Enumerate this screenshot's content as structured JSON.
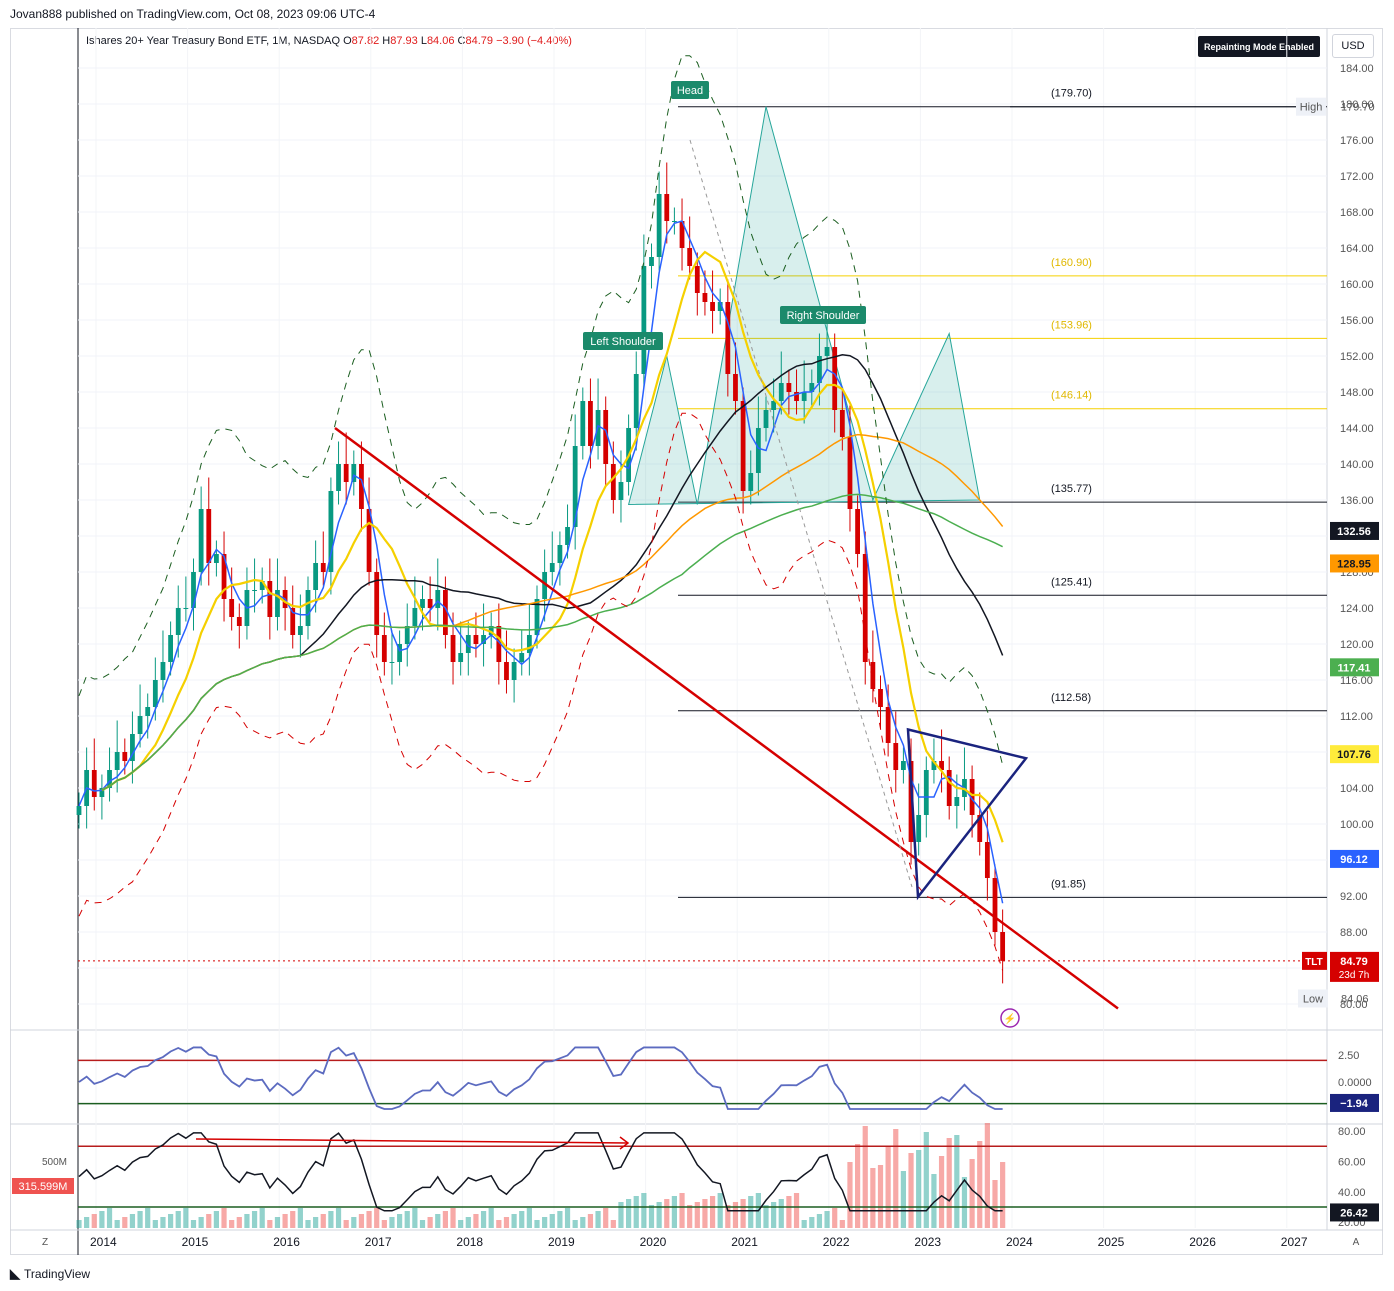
{
  "header": {
    "published": "Jovan888 published on TradingView.com, Oct 08, 2023 09:06 UTC-4",
    "title": "Ishares 20+ Year Treasury Bond ETF, 1M, NASDAQ",
    "o_label": "O",
    "o": "87.82",
    "h_label": "H",
    "h": "87.93",
    "l_label": "L",
    "l": "84.06",
    "c_label": "C",
    "c": "84.79",
    "change": "−3.90 (−4.40%)",
    "repainting": "Repainting Mode Enabled",
    "currency": "USD"
  },
  "footer": {
    "brand": "TradingView",
    "z_button": "Z",
    "a_button": "A"
  },
  "chart_data": [
    {
      "type": "candlestick",
      "title": "Ishares 20+ Year Treasury Bond ETF, 1M, NASDAQ",
      "x_axis": {
        "labels": [
          "2014",
          "2015",
          "2016",
          "2017",
          "2018",
          "2019",
          "2020",
          "2021",
          "2022",
          "2023",
          "2024",
          "2025",
          "2026",
          "2027"
        ]
      },
      "y_axis": {
        "ticks": [
          "184.00",
          "180.00",
          "176.00",
          "172.00",
          "168.00",
          "164.00",
          "160.00",
          "156.00",
          "152.00",
          "148.00",
          "144.00",
          "140.00",
          "136.00",
          "132.00",
          "128.00",
          "124.00",
          "120.00",
          "116.00",
          "112.00",
          "108.00",
          "104.00",
          "100.00",
          "96.00",
          "92.00",
          "88.00",
          "84.00",
          "80.00"
        ],
        "range": [
          79,
          186
        ]
      },
      "price_badges": [
        {
          "value": "132.56",
          "color": "#131722",
          "text_color": "#ffffff"
        },
        {
          "value": "128.95",
          "color": "#ff9800",
          "text_color": "#131722"
        },
        {
          "value": "117.41",
          "color": "#4caf50",
          "text_color": "#ffffff"
        },
        {
          "value": "107.76",
          "color": "#ffeb3b",
          "text_color": "#131722"
        },
        {
          "value": "96.12",
          "color": "#2962ff",
          "text_color": "#ffffff"
        }
      ],
      "high": {
        "label": "High",
        "value": "179.70"
      },
      "low": {
        "label": "Low",
        "value": "84.06"
      },
      "last": {
        "symbol": "TLT",
        "value": "84.79",
        "countdown": "23d 7h"
      },
      "levels": [
        {
          "label": "(179.70)",
          "value": 179.7,
          "color": "#131722"
        },
        {
          "label": "(160.90)",
          "value": 160.9,
          "color": "#f5d000"
        },
        {
          "label": "(153.96)",
          "value": 153.96,
          "color": "#f5d000"
        },
        {
          "label": "(146.14)",
          "value": 146.14,
          "color": "#f5d000"
        },
        {
          "label": "(135.77)",
          "value": 135.77,
          "color": "#131722"
        },
        {
          "label": "(125.41)",
          "value": 125.41,
          "color": "#131722"
        },
        {
          "label": "(112.58)",
          "value": 112.58,
          "color": "#131722"
        },
        {
          "label": "(91.85)",
          "value": 91.85,
          "color": "#131722"
        }
      ],
      "annotations": [
        "Head",
        "Left Shoulder",
        "Right Shoulder"
      ],
      "close_series": {
        "start": "2013-09",
        "values": [
          102,
          106,
          103,
          104,
          106,
          108,
          107,
          110,
          112,
          113,
          116,
          118,
          121,
          124,
          124,
          128,
          135,
          129,
          130,
          125,
          123,
          122,
          126,
          126,
          127,
          123,
          126,
          124,
          121,
          122,
          126,
          129,
          128,
          137,
          140,
          138,
          140,
          135,
          128,
          121,
          118,
          118,
          120,
          122,
          124,
          125,
          124,
          126,
          121,
          118,
          119,
          121,
          120,
          121,
          122,
          118,
          116,
          118,
          119,
          121,
          125,
          128,
          129,
          131,
          133,
          142,
          147,
          142,
          146,
          140,
          136,
          138,
          144,
          150,
          162,
          163,
          170,
          167,
          167,
          164,
          162,
          159,
          158,
          157,
          158,
          150,
          147,
          137,
          139,
          144,
          146,
          147,
          149,
          148,
          147,
          148,
          149,
          152,
          153,
          146,
          143,
          135,
          130,
          118,
          115,
          113,
          109,
          106,
          107,
          98,
          101,
          106,
          107,
          106,
          102,
          103,
          105,
          101,
          98,
          94,
          88,
          84.79
        ]
      },
      "moving_averages": [
        {
          "color": "#2962ff",
          "last": "96.12"
        },
        {
          "color": "#f5d000",
          "last": "107.76"
        },
        {
          "color": "#131722",
          "last": "132.56"
        },
        {
          "color": "#ff9800",
          "last": "128.95"
        },
        {
          "color": "#4caf50",
          "last": "117.41"
        }
      ]
    },
    {
      "type": "line",
      "y_axis": {
        "ticks": [
          "2.50",
          "0.0000"
        ],
        "range": [
          -2.6,
          3.6
        ]
      },
      "badge": "−1.94",
      "upper_band": 2.0,
      "lower_band": -2.0
    },
    {
      "type": "bar",
      "y_axis": {
        "ticks": [
          "80.00",
          "60.00",
          "40.00",
          "20.00"
        ],
        "range": [
          18,
          82
        ]
      },
      "left_labels": [
        "500M"
      ],
      "volume_badge": "315.599M",
      "rsi_badge": "26.42",
      "upper_band": 70,
      "lower_band": 30
    }
  ]
}
